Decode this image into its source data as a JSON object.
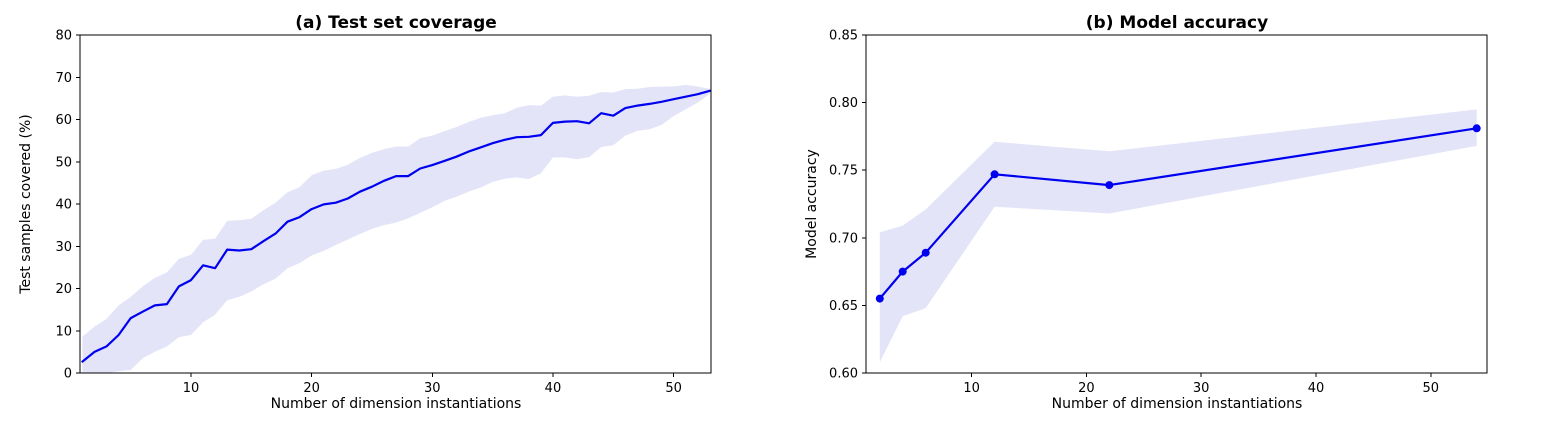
{
  "figure": {
    "background": "#ffffff",
    "line_color": "#0000f0",
    "band_color": "#e4e4f9",
    "marker_color": "#0000f0",
    "axis_color": "#000000",
    "text_color": "#000000"
  },
  "chart_data": [
    {
      "type": "line",
      "id": "a",
      "title": "(a) Test set coverage",
      "xlabel": "Number of dimension instantiations",
      "ylabel": "Test samples covered (%)",
      "xlim": [
        0.8,
        53.1
      ],
      "ylim": [
        0,
        80
      ],
      "xtick_vals": [
        10,
        20,
        30,
        40,
        50
      ],
      "xtick_labels": [
        "10",
        "20",
        "30",
        "40",
        "50"
      ],
      "ytick_vals": [
        0,
        10,
        20,
        30,
        40,
        50,
        60,
        70,
        80
      ],
      "ytick_labels": [
        "0",
        "10",
        "20",
        "30",
        "40",
        "50",
        "60",
        "70",
        "80"
      ],
      "grid": false,
      "legend": null,
      "markers": false,
      "x": [
        1,
        2,
        3,
        4,
        5,
        6,
        7,
        8,
        9,
        10,
        11,
        12,
        13,
        14,
        15,
        16,
        17,
        18,
        19,
        20,
        21,
        22,
        23,
        24,
        25,
        26,
        27,
        28,
        29,
        30,
        31,
        32,
        33,
        34,
        35,
        36,
        37,
        38,
        39,
        40,
        41,
        42,
        43,
        44,
        45,
        46,
        47,
        48,
        49,
        50,
        51,
        52,
        53
      ],
      "y": [
        2.7,
        5.0,
        6.3,
        9.0,
        13.0,
        14.5,
        16.0,
        16.3,
        20.5,
        22.0,
        25.5,
        24.8,
        29.2,
        29.0,
        29.3,
        31.2,
        33.0,
        35.8,
        36.9,
        38.8,
        39.9,
        40.3,
        41.3,
        42.9,
        44.1,
        45.5,
        46.6,
        46.6,
        48.4,
        49.2,
        50.2,
        51.2,
        52.4,
        53.4,
        54.4,
        55.2,
        55.8,
        55.9,
        56.3,
        59.2,
        59.5,
        59.6,
        59.1,
        61.5,
        60.9,
        62.7,
        63.3,
        63.7,
        64.2,
        64.8,
        65.4,
        66.0,
        66.8
      ],
      "band_lo": [
        0,
        0,
        0,
        0.4,
        0.7,
        3.5,
        5.0,
        6.3,
        8.5,
        9.0,
        12.0,
        13.8,
        17.2,
        18.0,
        19.3,
        21.0,
        22.3,
        24.8,
        26.0,
        27.8,
        28.9,
        30.3,
        31.6,
        32.9,
        34.1,
        35.0,
        35.6,
        36.6,
        37.9,
        39.2,
        40.7,
        41.7,
        42.9,
        43.9,
        45.2,
        46.0,
        46.3,
        45.9,
        47.3,
        51.0,
        51.0,
        50.6,
        51.1,
        53.5,
        53.9,
        56.2,
        57.3,
        57.7,
        58.7,
        60.8,
        62.4,
        64.0,
        66.1
      ],
      "band_hi": [
        8.6,
        11.0,
        12.8,
        16.0,
        18.0,
        20.5,
        22.5,
        23.8,
        27.0,
        28.0,
        31.5,
        31.8,
        36.0,
        36.2,
        36.5,
        38.5,
        40.3,
        42.8,
        44.0,
        46.8,
        47.9,
        48.3,
        49.3,
        50.9,
        52.1,
        53.0,
        53.6,
        53.6,
        55.6,
        56.2,
        57.2,
        58.2,
        59.4,
        60.4,
        61.0,
        61.5,
        62.8,
        63.4,
        63.3,
        65.4,
        65.7,
        65.4,
        65.6,
        66.5,
        66.4,
        67.2,
        67.3,
        67.7,
        67.8,
        67.8,
        68.2,
        67.8,
        67.3
      ]
    },
    {
      "type": "line",
      "id": "b",
      "title": "(b) Model accuracy",
      "xlabel": "Number of dimension instantiations",
      "ylabel": "Model accuracy",
      "xlim": [
        0.8,
        54.9
      ],
      "ylim": [
        0.6,
        0.85
      ],
      "xtick_vals": [
        10,
        20,
        30,
        40,
        50
      ],
      "xtick_labels": [
        "10",
        "20",
        "30",
        "40",
        "50"
      ],
      "ytick_vals": [
        0.6,
        0.65,
        0.7,
        0.75,
        0.8,
        0.85
      ],
      "ytick_labels": [
        "0.60",
        "0.65",
        "0.70",
        "0.75",
        "0.80",
        "0.85"
      ],
      "grid": false,
      "legend": null,
      "markers": true,
      "x": [
        2,
        4,
        6,
        12,
        22,
        54
      ],
      "y": [
        0.655,
        0.675,
        0.689,
        0.747,
        0.739,
        0.781
      ],
      "band_lo": [
        0.608,
        0.642,
        0.648,
        0.723,
        0.718,
        0.768
      ],
      "band_hi": [
        0.704,
        0.709,
        0.721,
        0.771,
        0.764,
        0.795
      ]
    }
  ]
}
